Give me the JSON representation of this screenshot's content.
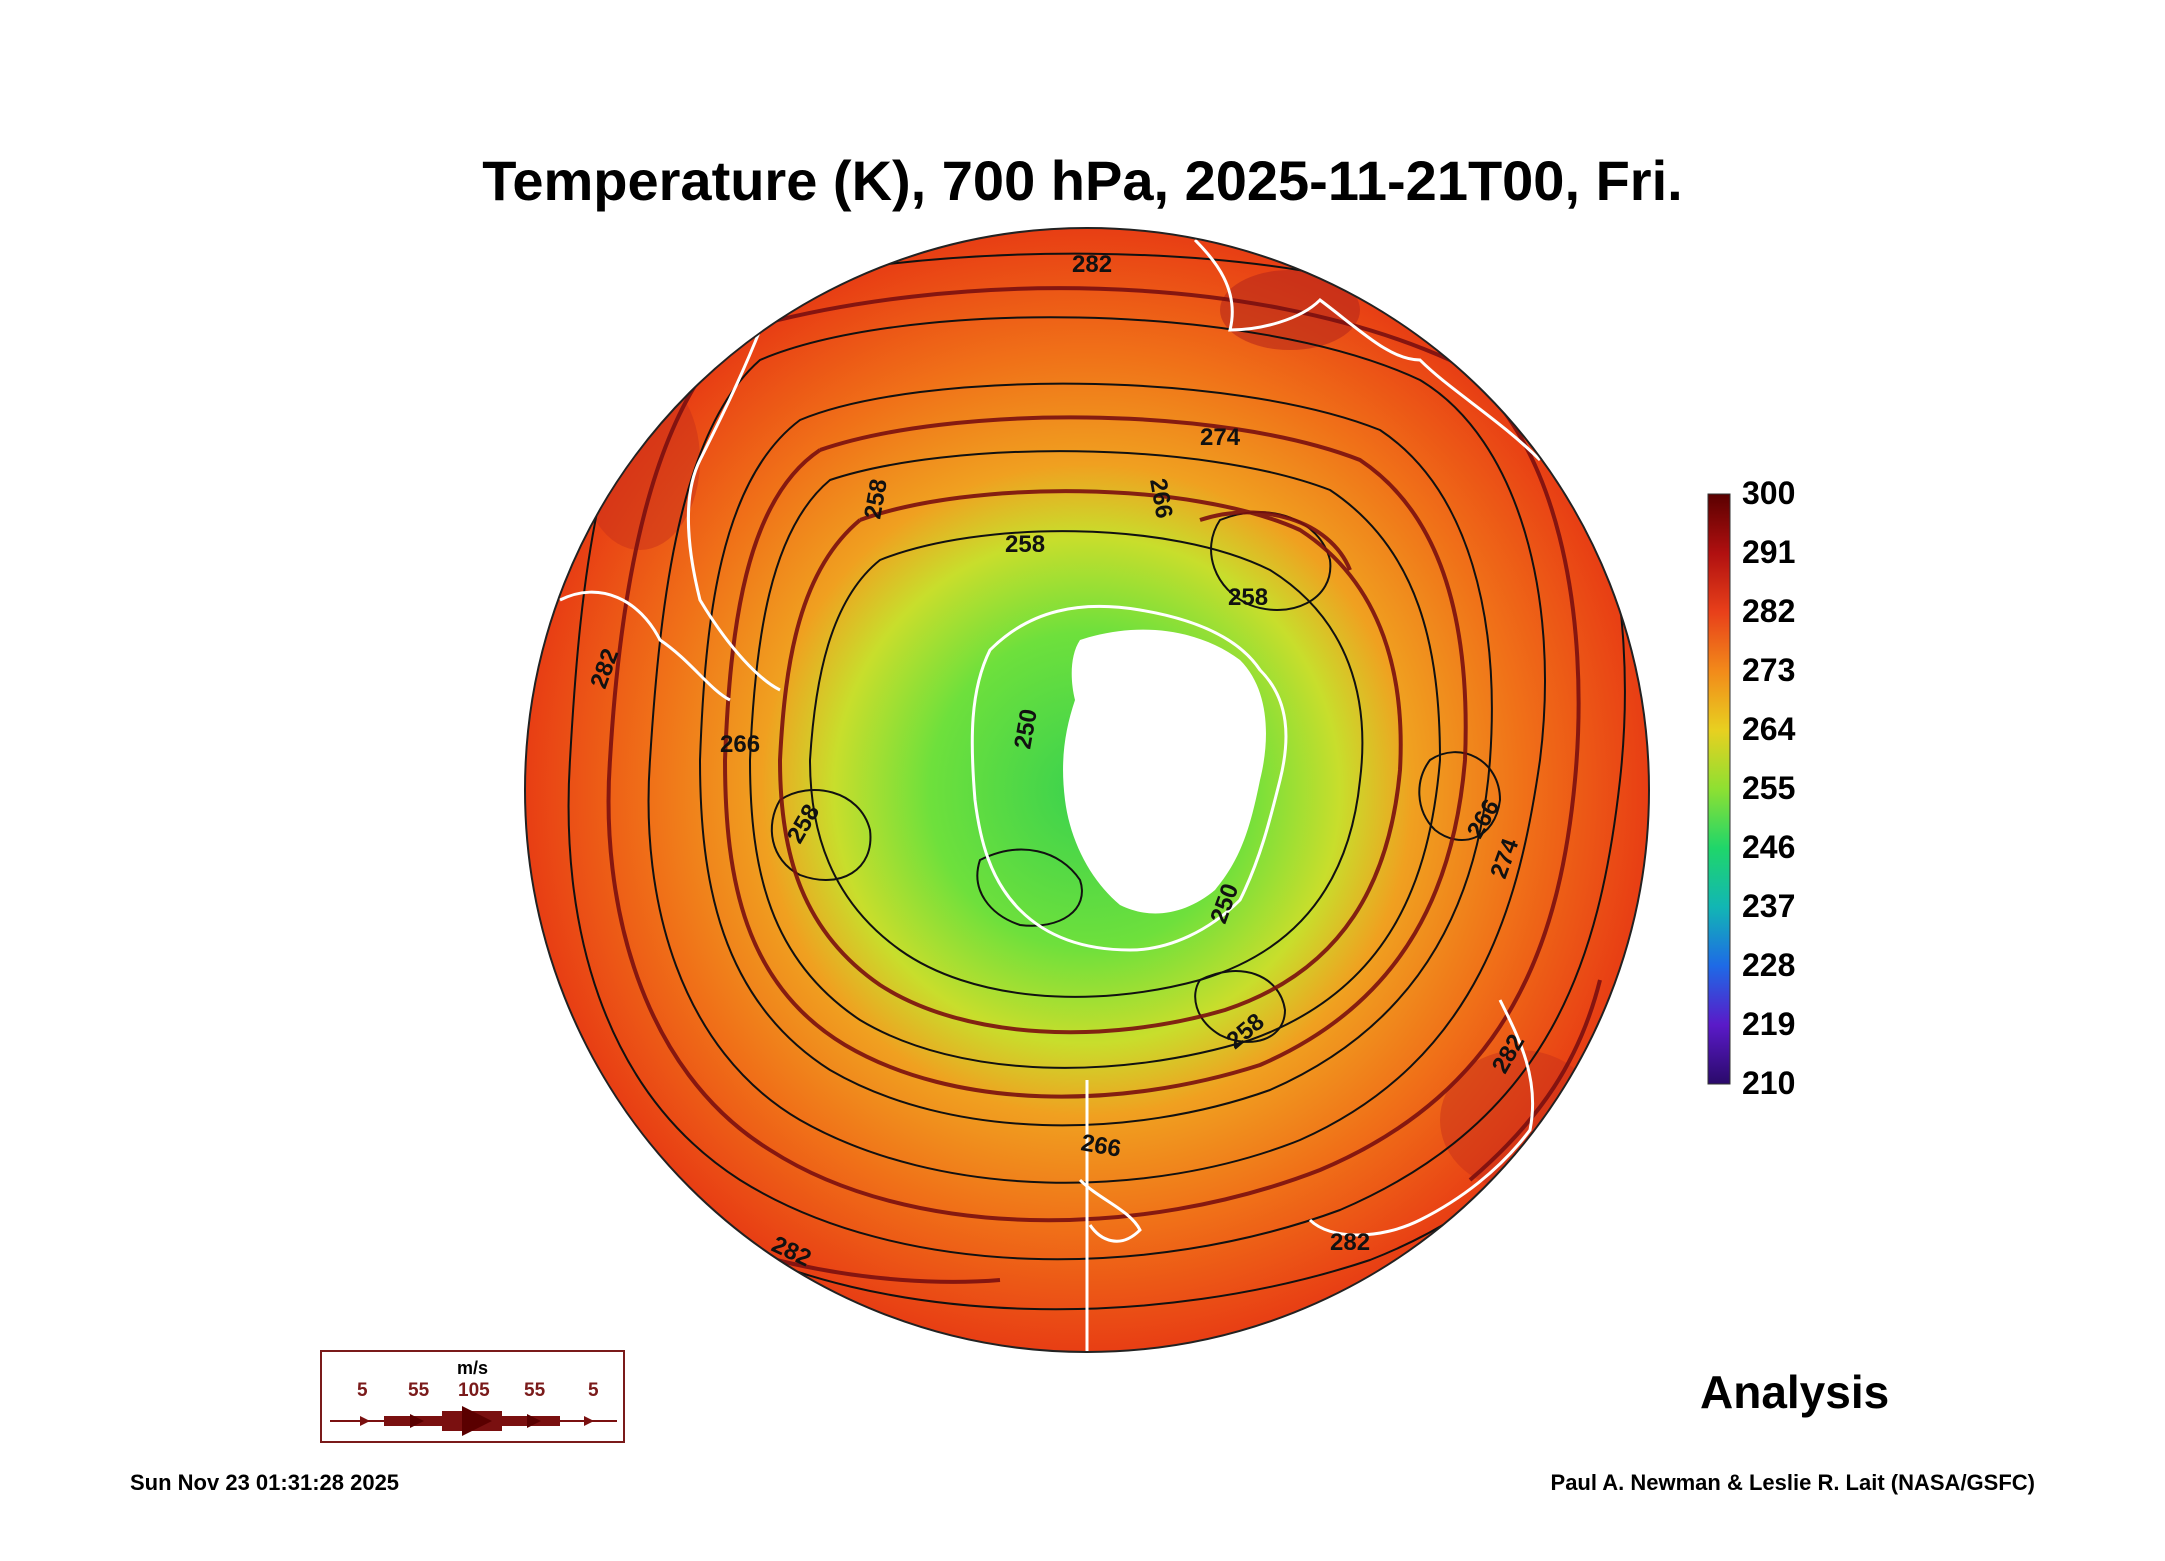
{
  "title": "Temperature (K), 700 hPa, 2025-11-21T00, Fri.",
  "colorbar": {
    "labels": [
      "300",
      "291",
      "282",
      "273",
      "264",
      "255",
      "246",
      "237",
      "228",
      "219",
      "210"
    ],
    "colors": [
      "#5a0000",
      "#b01010",
      "#e8401a",
      "#f28a1a",
      "#e8d020",
      "#8ee032",
      "#1fd66a",
      "#12b6b4",
      "#1e6ae6",
      "#5a1ac8",
      "#2a0a6a"
    ]
  },
  "contour_labels": [
    "282",
    "274",
    "266",
    "258",
    "258",
    "258",
    "282",
    "266",
    "250",
    "258",
    "266",
    "274",
    "250",
    "258",
    "266",
    "282",
    "282",
    "282"
  ],
  "wind_legend": {
    "unit": "m/s",
    "values": [
      "5",
      "55",
      "105",
      "55",
      "5"
    ]
  },
  "analysis_label": "Analysis",
  "timestamp": "Sun Nov 23 01:31:28 2025",
  "credit": "Paul A. Newman & Leslie R. Lait (NASA/GSFC)"
}
